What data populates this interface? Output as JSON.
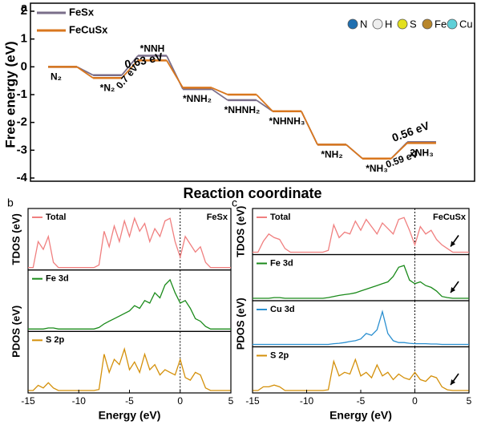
{
  "chart_data": [
    {
      "type": "energy",
      "panel": "a",
      "xlabel": "Reaction coordinate",
      "ylabel": "Free energy (eV)",
      "categories": [
        "N₂",
        "*N₂",
        "*NNH",
        "*NNH₂",
        "*NHNH₂",
        "*NHNH₃",
        "*NH₂",
        "*NH₃",
        "2NH₃"
      ],
      "series": [
        {
          "name": "FeSx",
          "color": "#7a6e8a",
          "values": [
            0,
            -0.3,
            0.4,
            -0.8,
            -1.2,
            -1.6,
            -2.8,
            -3.3,
            -2.71
          ]
        },
        {
          "name": "FeCuSx",
          "color": "#d9771e",
          "values": [
            0,
            -0.4,
            0.23,
            -0.75,
            -1.0,
            -1.6,
            -2.8,
            -3.3,
            -2.74
          ]
        }
      ],
      "annotations": [
        {
          "text": "0.63 eV",
          "color": "#d9771e"
        },
        {
          "text": "0.7 eV",
          "color": "#6a6478"
        },
        {
          "text": "0.56 eV",
          "color": "#d9771e"
        },
        {
          "text": "0.59 eV",
          "color": "#6a6478"
        }
      ],
      "atoms": [
        {
          "name": "N",
          "color": "#1f6fb0"
        },
        {
          "name": "H",
          "color": "#eeeeee"
        },
        {
          "name": "S",
          "color": "#e3e01e"
        },
        {
          "name": "Fe",
          "color": "#b8862b"
        },
        {
          "name": "Cu",
          "color": "#5fd0d8"
        }
      ],
      "ylim": [
        -4,
        2
      ],
      "yticks": [
        -4,
        -3,
        -2,
        -1,
        0,
        1,
        2
      ]
    },
    {
      "type": "dos",
      "panel": "b",
      "title": "FeSx",
      "xlabel": "Energy (eV)",
      "ylabels": [
        "TDOS (eV)",
        "PDOS (eV)"
      ],
      "xlim": [
        -15,
        5
      ],
      "xticks": [
        -15,
        -10,
        -5,
        0,
        5
      ],
      "ylim": [
        0,
        1
      ],
      "x": [
        -15,
        -14.5,
        -14,
        -13.5,
        -13,
        -12.5,
        -12,
        -11.5,
        -11,
        -10.5,
        -10,
        -9.5,
        -9,
        -8.5,
        -8,
        -7.5,
        -7,
        -6.5,
        -6,
        -5.5,
        -5,
        -4.5,
        -4,
        -3.5,
        -3,
        -2.5,
        -2,
        -1.5,
        -1,
        -0.5,
        0,
        0.5,
        1,
        1.5,
        2,
        2.5,
        3,
        3.5,
        4,
        4.5,
        5
      ],
      "series": [
        {
          "name": "Total",
          "color": "#f07f7f",
          "values": [
            0,
            0,
            0.5,
            0.35,
            0.6,
            0.1,
            0,
            0,
            0,
            0,
            0,
            0,
            0,
            0,
            0.05,
            0.7,
            0.4,
            0.8,
            0.5,
            0.9,
            0.6,
            0.95,
            0.7,
            0.85,
            0.5,
            0.75,
            0.6,
            0.9,
            0.95,
            0.5,
            0.2,
            0.6,
            0.45,
            0.3,
            0.4,
            0.1,
            0,
            0,
            0,
            0,
            0
          ]
        },
        {
          "name": "Fe 3d",
          "color": "#1a8a1a",
          "values": [
            0,
            0,
            0,
            0,
            0.02,
            0.02,
            0,
            0,
            0,
            0,
            0,
            0,
            0,
            0,
            0.03,
            0.1,
            0.15,
            0.2,
            0.25,
            0.3,
            0.35,
            0.45,
            0.4,
            0.55,
            0.5,
            0.7,
            0.6,
            0.85,
            0.95,
            0.7,
            0.5,
            0.55,
            0.4,
            0.2,
            0.15,
            0.05,
            0,
            0,
            0,
            0,
            0
          ]
        },
        {
          "name": "S 2p",
          "color": "#d4900a",
          "values": [
            0,
            0,
            0.1,
            0.05,
            0.15,
            0.05,
            0,
            0,
            0,
            0,
            0,
            0,
            0,
            0,
            0.02,
            0.7,
            0.35,
            0.6,
            0.5,
            0.8,
            0.4,
            0.55,
            0.35,
            0.7,
            0.4,
            0.5,
            0.3,
            0.4,
            0.35,
            0.3,
            0.6,
            0.25,
            0.2,
            0.35,
            0.3,
            0.05,
            0,
            0,
            0,
            0,
            0
          ]
        }
      ]
    },
    {
      "type": "dos",
      "panel": "c",
      "title": "FeCuSx",
      "xlabel": "Energy (eV)",
      "ylabels": [
        "TDOS (eV)",
        "PDOS (eV)"
      ],
      "xlim": [
        -15,
        5
      ],
      "xticks": [
        -15,
        -10,
        -5,
        0,
        5
      ],
      "ylim": [
        0,
        1
      ],
      "x": [
        -15,
        -14.5,
        -14,
        -13.5,
        -13,
        -12.5,
        -12,
        -11.5,
        -11,
        -10.5,
        -10,
        -9.5,
        -9,
        -8.5,
        -8,
        -7.5,
        -7,
        -6.5,
        -6,
        -5.5,
        -5,
        -4.5,
        -4,
        -3.5,
        -3,
        -2.5,
        -2,
        -1.5,
        -1,
        -0.5,
        0,
        0.5,
        1,
        1.5,
        2,
        2.5,
        3,
        3.5,
        4,
        4.5,
        5
      ],
      "series": [
        {
          "name": "Total",
          "color": "#f07f7f",
          "values": [
            0,
            0,
            0.3,
            0.5,
            0.4,
            0.35,
            0.1,
            0,
            0,
            0,
            0,
            0,
            0,
            0,
            0.05,
            0.75,
            0.4,
            0.55,
            0.5,
            0.85,
            0.6,
            0.9,
            0.7,
            0.5,
            0.8,
            0.65,
            0.5,
            0.9,
            0.95,
            0.6,
            0.2,
            0.7,
            0.5,
            0.6,
            0.35,
            0.2,
            0.1,
            0,
            0,
            0,
            0
          ]
        },
        {
          "name": "Fe 3d",
          "color": "#1a8a1a",
          "values": [
            0,
            0,
            0,
            0,
            0.02,
            0.02,
            0,
            0,
            0,
            0,
            0,
            0,
            0,
            0,
            0.02,
            0.05,
            0.08,
            0.1,
            0.12,
            0.15,
            0.2,
            0.25,
            0.3,
            0.35,
            0.4,
            0.45,
            0.6,
            0.85,
            0.9,
            0.5,
            0.4,
            0.45,
            0.35,
            0.3,
            0.2,
            0.05,
            0.02,
            0,
            0,
            0,
            0
          ]
        },
        {
          "name": "Cu 3d",
          "color": "#2a8fd0",
          "values": [
            0,
            0,
            0,
            0,
            0,
            0,
            0,
            0,
            0,
            0,
            0,
            0,
            0,
            0,
            0,
            0.02,
            0.03,
            0.05,
            0.08,
            0.1,
            0.15,
            0.3,
            0.25,
            0.4,
            0.9,
            0.3,
            0.1,
            0.05,
            0.05,
            0.03,
            0.02,
            0.02,
            0.02,
            0.01,
            0.01,
            0,
            0,
            0,
            0,
            0,
            0
          ]
        },
        {
          "name": "S 2p",
          "color": "#d4900a",
          "values": [
            0,
            0,
            0.1,
            0.1,
            0.15,
            0.1,
            0,
            0,
            0,
            0,
            0,
            0,
            0,
            0,
            0.02,
            0.8,
            0.4,
            0.5,
            0.45,
            0.85,
            0.4,
            0.5,
            0.35,
            0.7,
            0.4,
            0.5,
            0.3,
            0.45,
            0.35,
            0.3,
            0.5,
            0.3,
            0.25,
            0.4,
            0.35,
            0.1,
            0.02,
            0,
            0,
            0,
            0
          ]
        }
      ]
    }
  ]
}
